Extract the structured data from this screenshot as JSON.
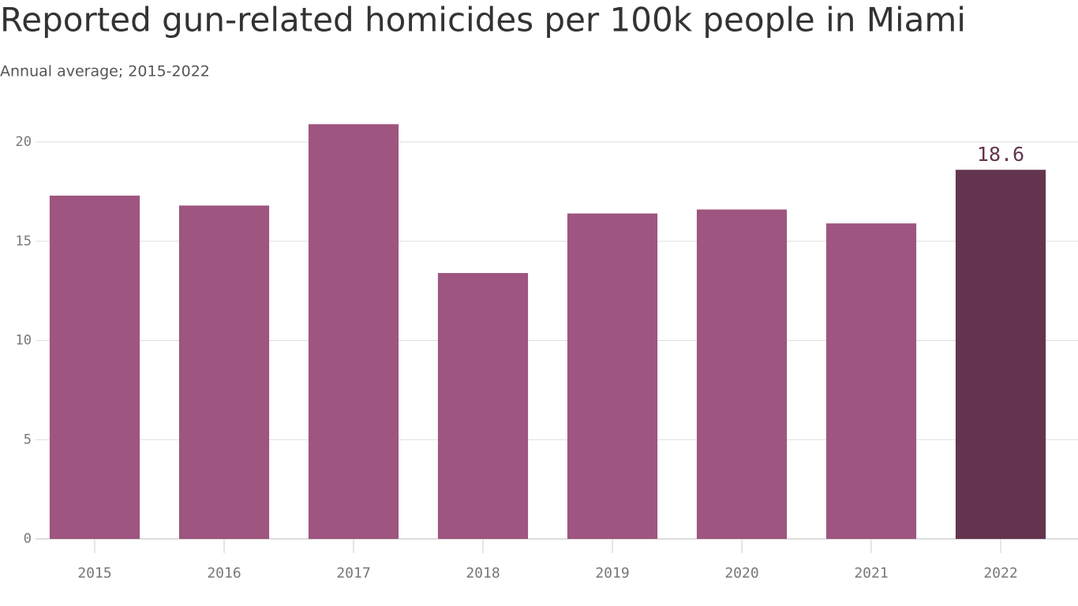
{
  "chart_data": {
    "type": "bar",
    "title": "Reported gun-related homicides per 100k people in Miami",
    "subtitle": "Annual average; 2015-2022",
    "categories": [
      "2015",
      "2016",
      "2017",
      "2018",
      "2019",
      "2020",
      "2021",
      "2022"
    ],
    "values": [
      17.3,
      16.8,
      20.9,
      13.4,
      16.4,
      16.6,
      15.9,
      18.6
    ],
    "value_labels": [
      null,
      null,
      null,
      null,
      null,
      null,
      null,
      "18.6"
    ],
    "colors": [
      "#9e5580",
      "#9e5580",
      "#9e5580",
      "#9e5580",
      "#9e5580",
      "#9e5580",
      "#9e5580",
      "#64344f"
    ],
    "ylim": [
      0,
      21
    ],
    "yticks": [
      0,
      5,
      10,
      15,
      20
    ],
    "grid": true
  }
}
